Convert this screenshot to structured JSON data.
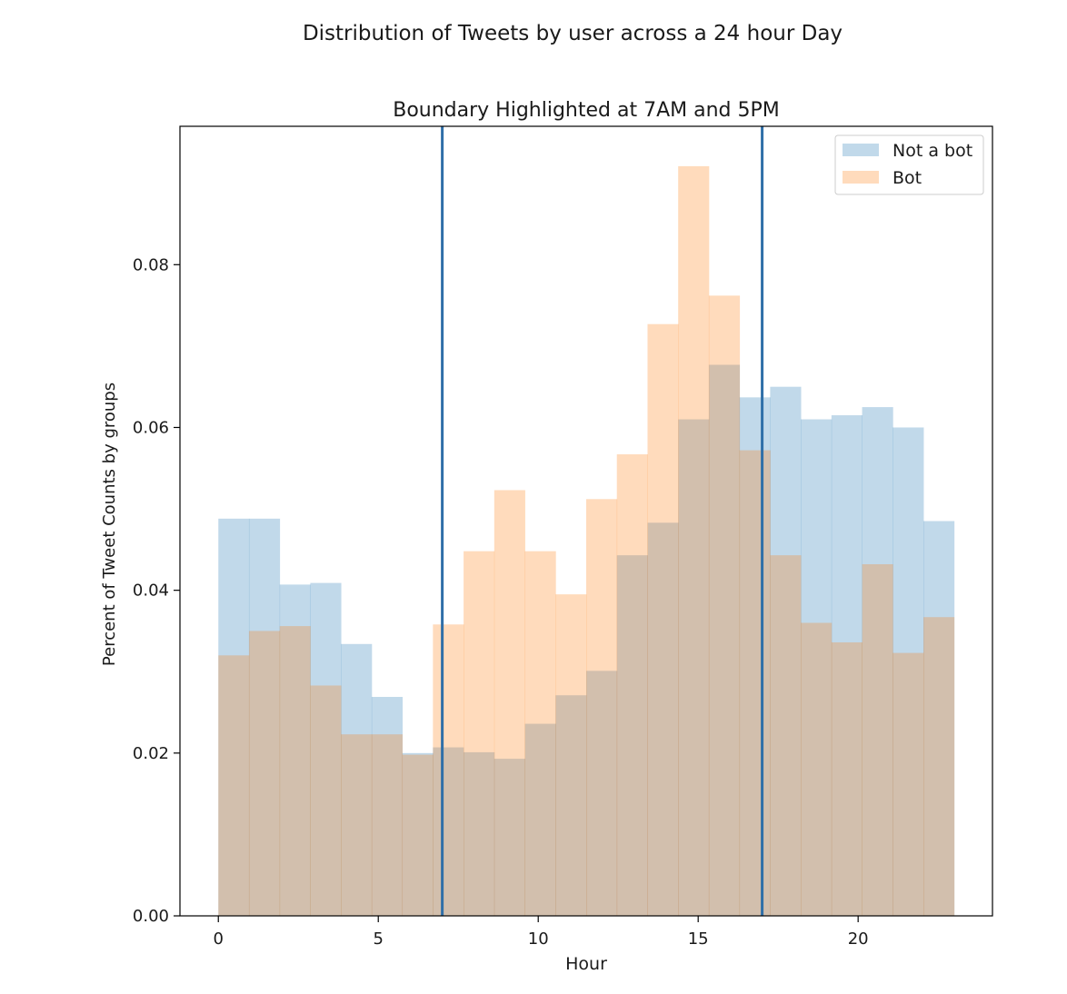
{
  "figure_title": "Distribution of Tweets by user across a 24 hour Day",
  "chart_data": {
    "type": "bar",
    "subtitle": "Boundary Highlighted at 7AM and 5PM",
    "xlabel": "Hour",
    "ylabel": "Percent of Tweet Counts by groups",
    "xlim": [
      -1.2,
      24.2
    ],
    "ylim": [
      0,
      0.097
    ],
    "x_ticks": [
      0,
      5,
      10,
      15,
      20
    ],
    "y_ticks": [
      0.0,
      0.02,
      0.04,
      0.06,
      0.08
    ],
    "y_tick_labels": [
      "0.00",
      "0.02",
      "0.04",
      "0.06",
      "0.08"
    ],
    "bin_edges": [
      0,
      0.958,
      1.917,
      2.875,
      3.833,
      4.792,
      5.75,
      6.708,
      7.667,
      8.625,
      9.583,
      10.542,
      11.5,
      12.458,
      13.417,
      14.375,
      15.333,
      16.292,
      17.25,
      18.208,
      19.167,
      20.125,
      21.083,
      22.042,
      23
    ],
    "series": [
      {
        "name": "Not a bot",
        "color": "#1f77b4",
        "alpha": 0.28,
        "values": [
          0.0488,
          0.0488,
          0.0407,
          0.0409,
          0.0334,
          0.0269,
          0.02,
          0.0207,
          0.0201,
          0.0193,
          0.0236,
          0.0271,
          0.0301,
          0.0443,
          0.0483,
          0.061,
          0.0677,
          0.0637,
          0.065,
          0.061,
          0.0615,
          0.0625,
          0.06,
          0.0485
        ]
      },
      {
        "name": "Bot",
        "color": "#ff7f0e",
        "alpha": 0.28,
        "values": [
          0.032,
          0.035,
          0.0356,
          0.0283,
          0.0223,
          0.0223,
          0.0198,
          0.0358,
          0.0448,
          0.0523,
          0.0448,
          0.0395,
          0.0512,
          0.0567,
          0.0727,
          0.0921,
          0.0762,
          0.0572,
          0.0443,
          0.036,
          0.0336,
          0.0432,
          0.0323,
          0.0367
        ]
      }
    ],
    "vlines": [
      {
        "x": 7,
        "color": "#2f6fa8"
      },
      {
        "x": 17,
        "color": "#2f6fa8"
      }
    ],
    "legend_position": "top-right",
    "grid": false
  }
}
